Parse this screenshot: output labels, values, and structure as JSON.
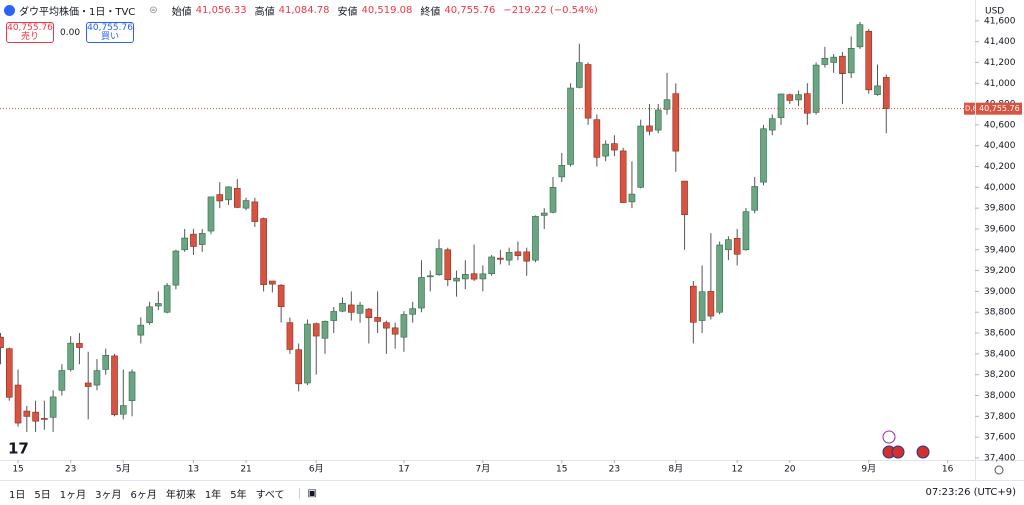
{
  "chart_data": {
    "type": "candlestick",
    "title": "ダウ平均株価・1日・TVC",
    "header": {
      "open_label": "始値",
      "open": "41,056.33",
      "high_label": "高値",
      "high": "41,084.78",
      "low_label": "安値",
      "low": "40,519.08",
      "close_label": "終値",
      "close": "40,755.76",
      "change": "−219.22 (−0.54%)"
    },
    "trade_panel": {
      "sell_price": "40,755.76",
      "sell_label": "売り",
      "spread": "0.00",
      "buy_price": "40,755.76",
      "buy_label": "買い"
    },
    "currency": "USD",
    "price_label": "40,755.76",
    "price_tag": "D,8",
    "up_color": "#6ba583",
    "down_color": "#d75442",
    "categories": [
      null,
      null,
      "15",
      null,
      null,
      null,
      null,
      null,
      "23",
      null,
      null,
      null,
      null,
      null,
      "5月",
      null,
      null,
      null,
      null,
      null,
      null,
      null,
      "13",
      null,
      null,
      null,
      null,
      null,
      "21",
      null,
      null,
      null,
      null,
      null,
      null,
      null,
      "6月",
      null,
      null,
      null,
      null,
      null,
      null,
      null,
      null,
      null,
      "17",
      null,
      null,
      null,
      null,
      null,
      null,
      null,
      null,
      "7月",
      null,
      null,
      null,
      null,
      null,
      null,
      null,
      null,
      "15",
      null,
      null,
      null,
      null,
      null,
      "23",
      null,
      null,
      null,
      null,
      null,
      null,
      "8月",
      null,
      null,
      null,
      null,
      null,
      null,
      "12",
      null,
      null,
      null,
      null,
      null,
      "20",
      null,
      null,
      null,
      null,
      null,
      null,
      null,
      null,
      "9月",
      null,
      null,
      null,
      null,
      null,
      null,
      null,
      null,
      "16"
    ],
    "open": [
      38560,
      38450,
      38100,
      37850,
      37840,
      37780,
      37790,
      38050,
      38250,
      38500,
      38120,
      38100,
      38250,
      38380,
      37820,
      37950,
      38580,
      38700,
      38860,
      38800,
      39060,
      39400,
      39550,
      39450,
      39580,
      39930,
      39880,
      39990,
      39800,
      39860,
      39700,
      39100,
      39060,
      38700,
      38440,
      38120,
      38690,
      38550,
      38720,
      38810,
      38870,
      38790,
      38830,
      38750,
      38700,
      38650,
      38560,
      38780,
      38840,
      39140,
      39160,
      39400,
      39100,
      39120,
      39170,
      39120,
      39170,
      39320,
      39300,
      39380,
      39380,
      39300,
      39730,
      39760,
      40100,
      40220,
      40960,
      41180,
      40650,
      40300,
      40420,
      40350,
      39860,
      40000,
      40590,
      40550,
      40750,
      40900,
      40060,
      39050,
      38720,
      39000,
      38800,
      39400,
      39510,
      39400,
      39780,
      40050,
      40550,
      40670,
      40890,
      40840,
      40900,
      40720,
      41180,
      41200,
      41260,
      41100,
      41350,
      41500,
      40890,
      41056.33,
      null,
      null,
      null,
      null,
      null,
      null,
      null
    ],
    "high": [
      38600,
      38460,
      38250,
      37900,
      37950,
      37950,
      38050,
      38300,
      38570,
      38600,
      38420,
      38350,
      38450,
      38400,
      38250,
      38250,
      38750,
      38900,
      39000,
      39080,
      39400,
      39600,
      39600,
      39600,
      39910,
      40050,
      40010,
      40080,
      39900,
      39900,
      39710,
      39100,
      39070,
      38750,
      38500,
      38730,
      38700,
      38720,
      38850,
      38940,
      39000,
      38900,
      38840,
      39000,
      38720,
      38700,
      38810,
      38900,
      39300,
      39200,
      39500,
      39420,
      39200,
      39300,
      39450,
      39250,
      39350,
      39400,
      39420,
      39480,
      39420,
      39730,
      39800,
      40100,
      40330,
      41000,
      41380,
      41200,
      40700,
      40450,
      40500,
      40380,
      40250,
      40650,
      40800,
      40800,
      41100,
      41000,
      40060,
      39100,
      39250,
      39560,
      39480,
      39530,
      39600,
      39800,
      40100,
      40600,
      40700,
      40900,
      40900,
      40930,
      41000,
      41200,
      41350,
      41280,
      41300,
      41450,
      41590,
      41520,
      41180,
      41084.78,
      null,
      null,
      null,
      null,
      null,
      null,
      null
    ],
    "low": [
      38300,
      37950,
      37700,
      37650,
      37650,
      37670,
      37650,
      38000,
      38230,
      38300,
      37770,
      38050,
      38200,
      37800,
      37770,
      37800,
      38500,
      38680,
      38820,
      38790,
      39020,
      39380,
      39350,
      39380,
      39550,
      39800,
      39830,
      39800,
      39780,
      39620,
      39000,
      38990,
      38700,
      38400,
      38040,
      38100,
      38200,
      38400,
      38600,
      38800,
      38720,
      38700,
      38500,
      38600,
      38400,
      38450,
      38420,
      38700,
      38800,
      39000,
      39150,
      39050,
      38950,
      39020,
      39100,
      39000,
      39150,
      39260,
      39250,
      39300,
      39150,
      39280,
      39600,
      39750,
      40050,
      40200,
      40950,
      40600,
      40200,
      40250,
      40300,
      39850,
      39800,
      39990,
      40500,
      40520,
      40700,
      40150,
      39400,
      38500,
      38600,
      38730,
      38780,
      39300,
      39250,
      39390,
      39750,
      40020,
      40500,
      40600,
      40800,
      40780,
      40600,
      40700,
      41150,
      41100,
      40800,
      41050,
      41330,
      40900,
      40880,
      40519.08,
      null,
      null,
      null,
      null,
      null,
      null,
      null
    ],
    "close": [
      38460,
      37983,
      37735,
      37799,
      37753,
      37775,
      37986,
      38240,
      38503,
      38461,
      38086,
      38239,
      38386,
      37816,
      37903,
      38226,
      38676,
      38852,
      38884,
      39056,
      39388,
      39513,
      39432,
      39558,
      39908,
      39869,
      40004,
      39807,
      39873,
      39671,
      39065,
      39070,
      38853,
      38442,
      38112,
      38686,
      38571,
      38712,
      38807,
      38886,
      38799,
      38868,
      38747,
      38712,
      38647,
      38589,
      38778,
      38834,
      39134,
      39150,
      39411,
      39112,
      39127,
      39164,
      39118,
      39169,
      39331,
      39308,
      39375,
      39344,
      39291,
      39721,
      39753,
      40000,
      40211,
      40954,
      41198,
      40665,
      40288,
      40415,
      40358,
      39854,
      39935,
      40589,
      40539,
      40743,
      40842,
      40348,
      39737,
      38703,
      38997,
      38763,
      39446,
      39497,
      39357,
      39766,
      40008,
      40563,
      40660,
      40897,
      40835,
      40891,
      40712,
      41175,
      41240,
      41251,
      41092,
      41336,
      41563,
      40937,
      40975,
      40755.76,
      null,
      null,
      null,
      null,
      null,
      null,
      null
    ],
    "ylim": [
      37380,
      41800
    ],
    "yticks": [
      {
        "value": 37400,
        "label": "37,400"
      },
      {
        "value": 37600,
        "label": "37,600"
      },
      {
        "value": 37800,
        "label": "37,800"
      },
      {
        "value": 38000,
        "label": "38,000"
      },
      {
        "value": 38200,
        "label": "38,200"
      },
      {
        "value": 38400,
        "label": "38,400"
      },
      {
        "value": 38600,
        "label": "38,600"
      },
      {
        "value": 38800,
        "label": "38,800"
      },
      {
        "value": 39000,
        "label": "39,000"
      },
      {
        "value": 39200,
        "label": "39,200"
      },
      {
        "value": 39400,
        "label": "39,400"
      },
      {
        "value": 39600,
        "label": "39,600"
      },
      {
        "value": 39800,
        "label": "39,800"
      },
      {
        "value": 40000,
        "label": "40,000"
      },
      {
        "value": 40200,
        "label": "40,200"
      },
      {
        "value": 40400,
        "label": "40,400"
      },
      {
        "value": 40600,
        "label": "40,600"
      },
      {
        "value": 40800,
        "label": "40,800"
      },
      {
        "value": 41000,
        "label": "41,000"
      },
      {
        "value": 41200,
        "label": "41,200"
      },
      {
        "value": 41400,
        "label": "41,400"
      },
      {
        "value": 41600,
        "label": "41,600"
      }
    ],
    "grid": false,
    "toolbar": {
      "ranges": [
        "1日",
        "5日",
        "1ヶ月",
        "3ヶ月",
        "6ヶ月",
        "年初来",
        "1年",
        "5年",
        "すべて"
      ],
      "clock": "07:23:26 (UTC+9)"
    }
  }
}
